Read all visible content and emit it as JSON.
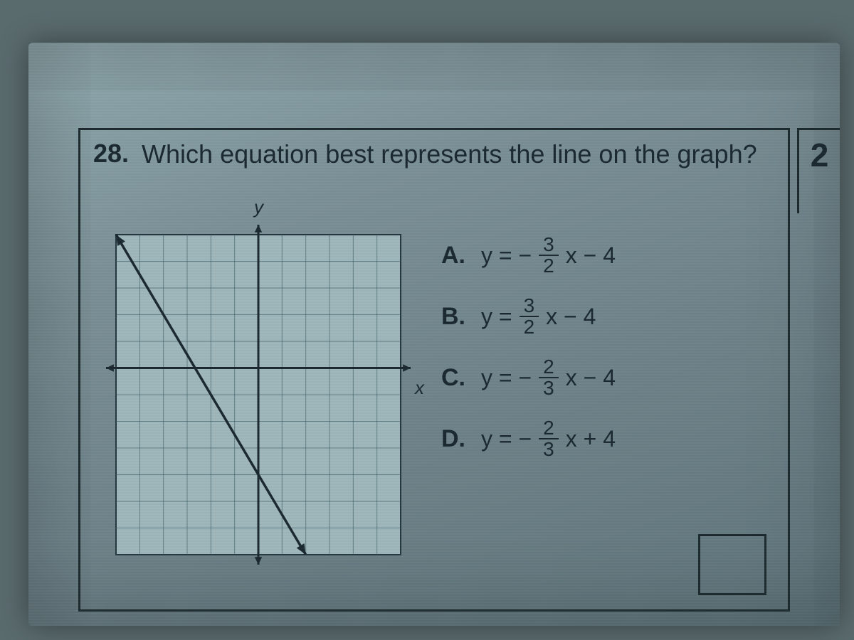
{
  "question": {
    "number": "28.",
    "text": "Which equation best represents the line on the graph?"
  },
  "side_label": "2",
  "axis_labels": {
    "x": "x",
    "y": "y"
  },
  "graph": {
    "type": "line",
    "xlim": [
      -6,
      6
    ],
    "ylim": [
      -7,
      5
    ],
    "xtick_step": 1,
    "ytick_step": 1,
    "grid": true,
    "grid_color": "#3a5a64",
    "background_color": "#9eb6ba",
    "axis_color": "#1a2830",
    "border_color": "#1a2830",
    "line_color": "#1a2830",
    "line_width": 3.5,
    "line_points": [
      [
        -6,
        5
      ],
      [
        2,
        -7
      ]
    ],
    "arrowheads": true,
    "aspect": 1
  },
  "choices": [
    {
      "letter": "A.",
      "prefix": "y = −",
      "num": "3",
      "den": "2",
      "suffix": "x − 4"
    },
    {
      "letter": "B.",
      "prefix": "y = ",
      "num": "3",
      "den": "2",
      "suffix": "x − 4"
    },
    {
      "letter": "C.",
      "prefix": "y = −",
      "num": "2",
      "den": "3",
      "suffix": "x − 4"
    },
    {
      "letter": "D.",
      "prefix": "y = −",
      "num": "2",
      "den": "3",
      "suffix": "x + 4"
    }
  ],
  "colors": {
    "page_bg": "#8fa8ad",
    "text": "#1a2830",
    "box_border": "#1d2a2d"
  }
}
